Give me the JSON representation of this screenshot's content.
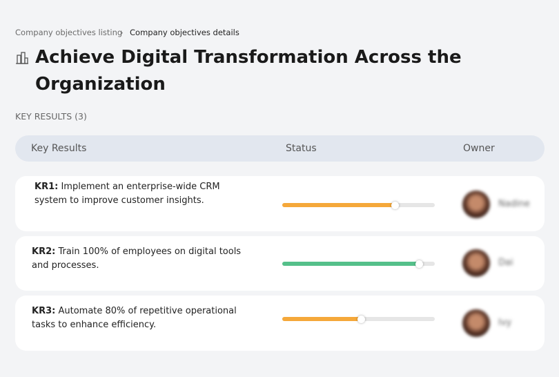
{
  "breadcrumb": [
    "Company objectives listing",
    "Company objectives details"
  ],
  "title": "Achieve Digital Transformation Across the Organization",
  "section_label": "KEY RESULTS (3)",
  "table": {
    "headers": [
      "Key Results",
      "Status",
      "Owner"
    ],
    "rows": [
      {
        "code": "KR1:",
        "text": "Implement an enterprise-wide CRM system to improve customer insights.",
        "progress": 74,
        "color": "#f5a83a",
        "owner": "Nadine"
      },
      {
        "code": "KR2:",
        "text": "Train 100% of employees on digital tools and processes.",
        "progress": 90,
        "color": "#55c08a",
        "owner": "Dai"
      },
      {
        "code": "KR3:",
        "text": "Automate 80% of repetitive operational tasks to enhance efficiency.",
        "progress": 52,
        "color": "#f5a83a",
        "owner": "Ivy"
      }
    ]
  }
}
